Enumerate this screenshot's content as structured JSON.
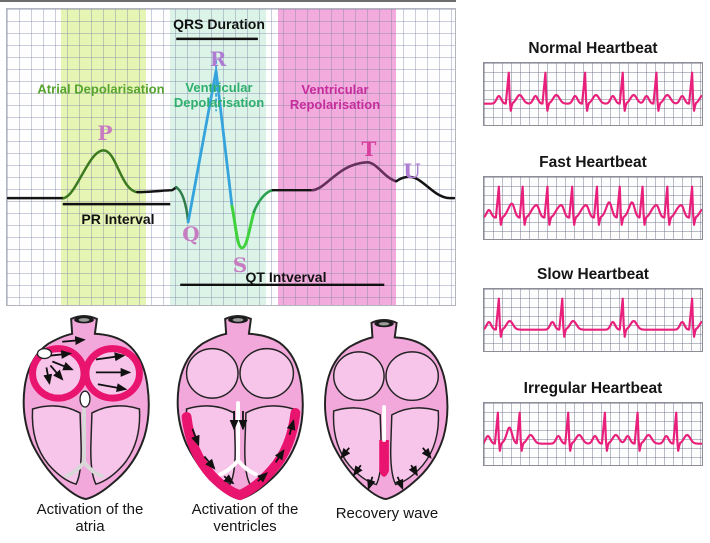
{
  "colors": {
    "band_atrial": "#e6f4b4",
    "band_vent_depol": "#dcf4e8",
    "band_vent_repol": "#f3abdd",
    "text_atrial": "#57a42e",
    "text_vent_depol": "#2fae6e",
    "text_vent_repol": "#c42d9b",
    "interval_text": "#111111",
    "wave_baseline": "#141414",
    "wave_p": "#3c7a20",
    "wave_q": "#2f7d4a",
    "wave_r_blue": "#35a3dc",
    "wave_s_green": "#3fd23c",
    "wave_recovery": "#2aa14e",
    "wave_t": "#64305c",
    "label_pqs": "#c77cc2",
    "label_ru": "#ae7cd2",
    "label_t": "#d8419f",
    "strip_trace": "#e8207c",
    "heart_body": "#f3a8dc",
    "heart_chamber": "#f7c4ea",
    "heart_active": "#e8146e"
  },
  "ecg_panel": {
    "qrs_duration": "QRS Duration",
    "pr_interval": "PR Interval",
    "qt_interval": "QT Intverval",
    "region_atrial": "Atrial Depolarisation",
    "region_vent_depol": "Ventricular Depolarisation",
    "region_vent_repol": "Ventricular Repolarisation",
    "wave_labels": {
      "p": "P",
      "q": "Q",
      "r": "R",
      "s": "S",
      "t": "T",
      "u": "U"
    }
  },
  "hearts": [
    {
      "caption": "Activation of the atria"
    },
    {
      "caption": "Activation of the ventricles"
    },
    {
      "caption": "Recovery wave"
    }
  ],
  "heartbeat_strips": [
    {
      "title": "Normal Heartbeat",
      "beats": [
        25,
        62,
        102,
        140,
        174,
        210
      ]
    },
    {
      "title": "Fast Heartbeat",
      "beats": [
        15,
        39,
        64,
        89,
        114,
        137,
        160,
        185,
        210
      ]
    },
    {
      "title": "Slow Heartbeat",
      "beats": [
        15,
        79,
        140,
        210
      ]
    },
    {
      "title": "Irregular Heartbeat",
      "beats": [
        14,
        36,
        85,
        122,
        155,
        194
      ]
    }
  ]
}
